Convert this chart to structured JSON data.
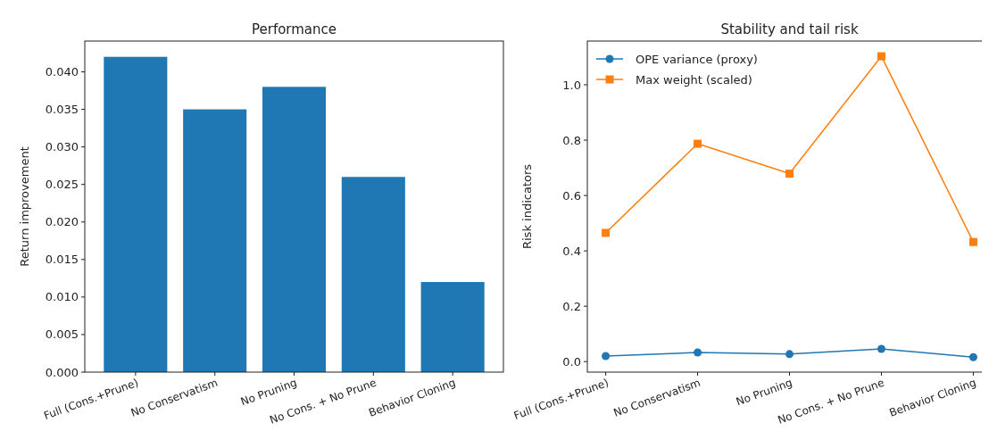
{
  "chart_data": [
    {
      "type": "bar",
      "title": "Performance",
      "ylabel": "Return improvement",
      "categories": [
        "Full (Cons.+Prune)",
        "No Conservatism",
        "No Pruning",
        "No Cons. + No Prune",
        "Behavior Cloning"
      ],
      "values": [
        0.042,
        0.035,
        0.038,
        0.026,
        0.012
      ],
      "color": "#1f77b4",
      "ylim": [
        0,
        0.0441
      ],
      "yticks": [
        {
          "value": 0,
          "label": "0.000"
        },
        {
          "value": 0.005,
          "label": "0.005"
        },
        {
          "value": 0.01,
          "label": "0.010"
        },
        {
          "value": 0.015,
          "label": "0.015"
        },
        {
          "value": 0.02,
          "label": "0.020"
        },
        {
          "value": 0.025,
          "label": "0.025"
        },
        {
          "value": 0.03,
          "label": "0.030"
        },
        {
          "value": 0.035,
          "label": "0.035"
        },
        {
          "value": 0.04,
          "label": "0.040"
        }
      ],
      "grid": false
    },
    {
      "type": "line",
      "title": "Stability and tail risk",
      "ylabel": "Risk indicators",
      "categories": [
        "Full (Cons.+Prune)",
        "No Conservatism",
        "No Pruning",
        "No Cons. + No Prune",
        "Behavior Cloning"
      ],
      "series": [
        {
          "name": "OPE variance (proxy)",
          "color": "#1f77b4",
          "marker": "circle",
          "values": [
            0.02,
            0.033,
            0.027,
            0.046,
            0.016
          ]
        },
        {
          "name": "Max weight (scaled)",
          "color": "#ff7f0e",
          "marker": "square",
          "values": [
            0.465,
            0.787,
            0.679,
            1.103,
            0.432
          ]
        }
      ],
      "ylim": [
        -0.038,
        1.158
      ],
      "yticks": [
        {
          "value": 0,
          "label": "0.0"
        },
        {
          "value": 0.2,
          "label": "0.2"
        },
        {
          "value": 0.4,
          "label": "0.4"
        },
        {
          "value": 0.6,
          "label": "0.6"
        },
        {
          "value": 0.8,
          "label": "0.8"
        },
        {
          "value": 1,
          "label": "1.0"
        }
      ],
      "grid": false,
      "legend": "top left"
    }
  ]
}
